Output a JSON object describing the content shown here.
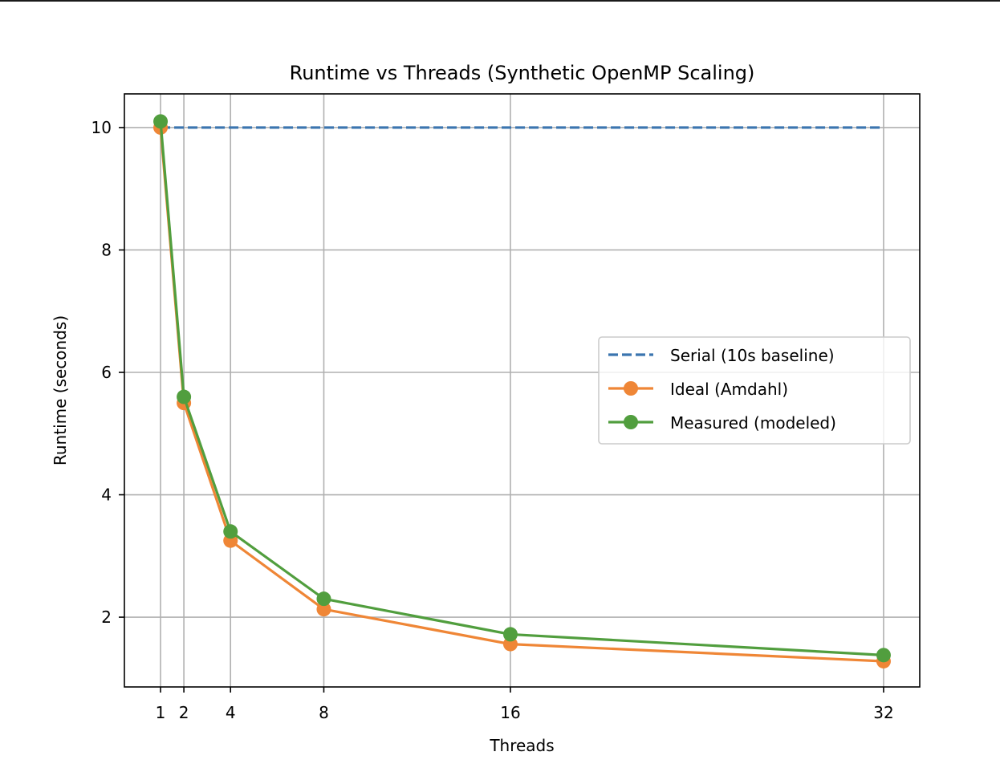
{
  "chart_data": {
    "type": "line",
    "title": "Runtime vs Threads (Synthetic OpenMP Scaling)",
    "xlabel": "Threads",
    "ylabel": "Runtime (seconds)",
    "x": [
      1,
      2,
      4,
      8,
      16,
      32
    ],
    "xticks": [
      1,
      2,
      4,
      8,
      16,
      32
    ],
    "yticks": [
      2,
      4,
      6,
      8,
      10
    ],
    "xlim": [
      -0.55,
      33.55
    ],
    "ylim": [
      0.86,
      10.55
    ],
    "grid": true,
    "legend_position": "center-right",
    "series": [
      {
        "name": "Serial (10s baseline)",
        "values": [
          10,
          10,
          10,
          10,
          10,
          10
        ],
        "color": "#3b75af",
        "style": "dashed",
        "markers": false
      },
      {
        "name": "Ideal (Amdahl)",
        "values": [
          10.0,
          5.5,
          3.25,
          2.13,
          1.56,
          1.28
        ],
        "color": "#ef8636",
        "style": "solid",
        "markers": true
      },
      {
        "name": "Measured (modeled)",
        "values": [
          10.1,
          5.6,
          3.4,
          2.3,
          1.72,
          1.38
        ],
        "color": "#519e3e",
        "style": "solid",
        "markers": true
      }
    ]
  }
}
